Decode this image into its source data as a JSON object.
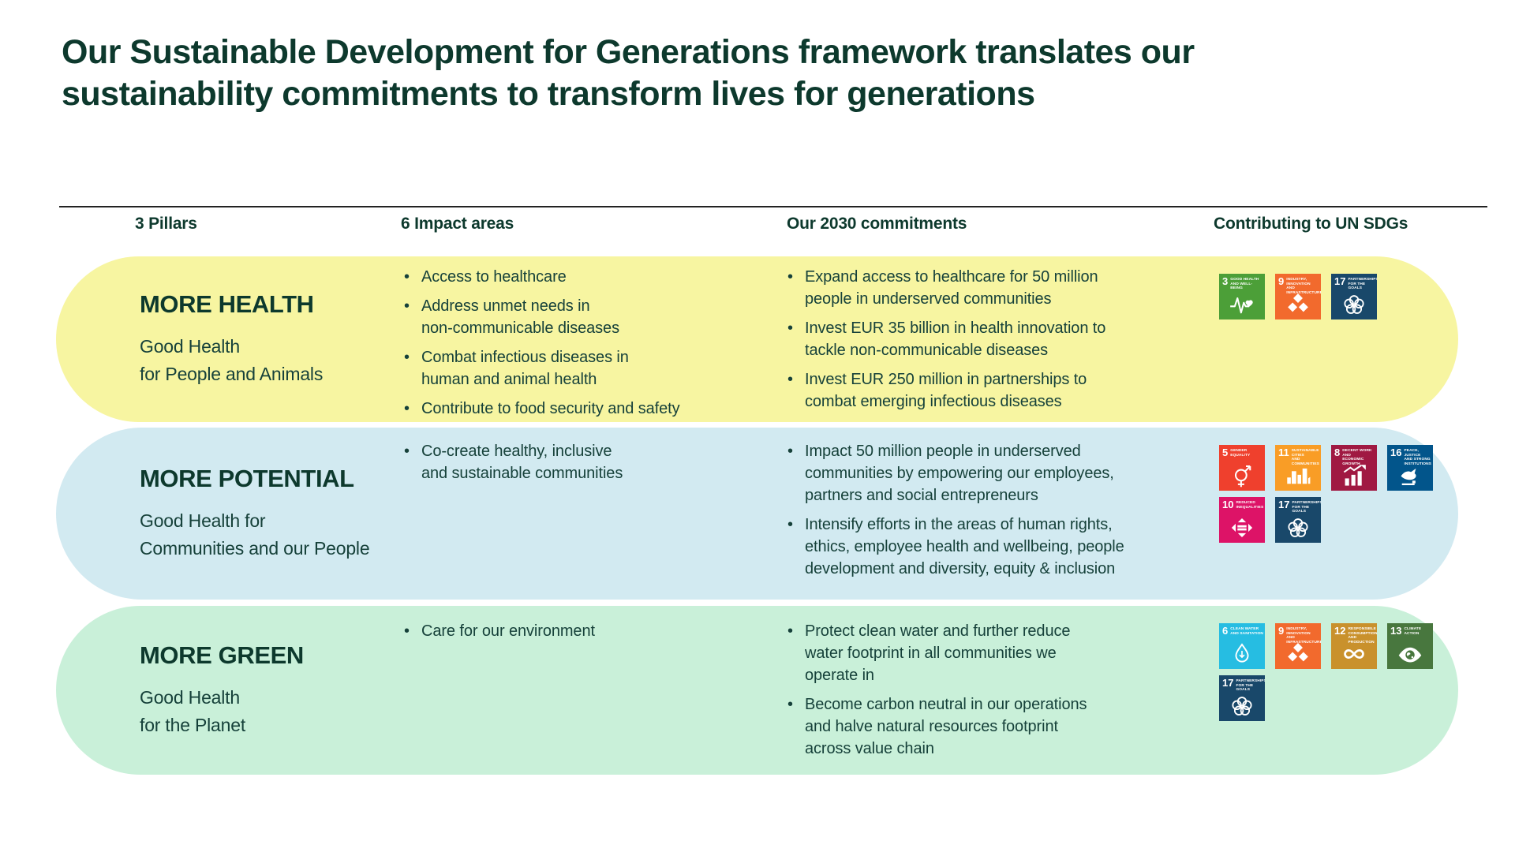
{
  "title": "Our Sustainable Development for Generations framework translates our\nsustainability commitments to transform lives for generations",
  "columns": {
    "pillars": "3 Pillars",
    "impact": "6 Impact areas",
    "commitments": "Our 2030 commitments",
    "sdgs": "Contributing to UN SDGs"
  },
  "colors": {
    "accent_dark_green": "#0d392d",
    "body_text_green": "#16413a",
    "row_more_health_bg": "#f7f5a1",
    "row_more_potential_bg": "#d2eaf1",
    "row_more_green_bg": "#c9f0d9"
  },
  "rows": [
    {
      "name": "MORE HEALTH",
      "subtitle": "Good Health\nfor People and Animals",
      "impact_areas": [
        "Access to healthcare",
        "Address unmet needs in\nnon-communicable diseases",
        "Combat infectious diseases in\nhuman and animal health",
        "Contribute to food security and safety"
      ],
      "commitments": [
        "Expand access to healthcare for 50 million\npeople in underserved communities",
        "Invest EUR 35 billion in health innovation to\ntackle non-communicable diseases",
        "Invest EUR 250 million in partnerships to\ncombat emerging infectious diseases"
      ],
      "sdgs": [
        {
          "n": "3",
          "label": "GOOD HEALTH\nAND WELL-BEING",
          "color": "#4C9F38",
          "icon": "heartbeat-icon"
        },
        {
          "n": "9",
          "label": "INDUSTRY, INNOVATION\nAND INFRASTRUCTURE",
          "color": "#F26A2D",
          "icon": "cubes-icon"
        },
        {
          "n": "17",
          "label": "PARTNERSHIPS\nFOR THE GOALS",
          "color": "#19486A",
          "icon": "circles-icon"
        }
      ]
    },
    {
      "name": "MORE POTENTIAL",
      "subtitle": "Good Health for\nCommunities and our People",
      "impact_areas": [
        "Co-create healthy, inclusive\nand sustainable communities"
      ],
      "commitments": [
        "Impact 50 million people in underserved\ncommunities by empowering our employees,\npartners and social entrepreneurs",
        "Intensify efforts in the areas of human rights,\nethics,  employee health and wellbeing, people\ndevelopment and diversity, equity & inclusion"
      ],
      "sdgs": [
        {
          "n": "5",
          "label": "GENDER\nEQUALITY",
          "color": "#EF402D",
          "icon": "gender-icon"
        },
        {
          "n": "11",
          "label": "SUSTAINABLE CITIES\nAND COMMUNITIES",
          "color": "#F99D26",
          "icon": "city-icon"
        },
        {
          "n": "8",
          "label": "DECENT WORK AND\nECONOMIC GROWTH",
          "color": "#A01942",
          "icon": "growth-icon"
        },
        {
          "n": "16",
          "label": "PEACE, JUSTICE\nAND STRONG\nINSTITUTIONS",
          "color": "#02558B",
          "icon": "dove-icon"
        },
        {
          "n": "10",
          "label": "REDUCED\nINEQUALITIES",
          "color": "#DD1367",
          "icon": "equality-icon"
        },
        {
          "n": "17",
          "label": "PARTNERSHIPS\nFOR THE GOALS",
          "color": "#19486A",
          "icon": "circles-icon"
        }
      ]
    },
    {
      "name": "MORE GREEN",
      "subtitle": "Good Health\nfor the Planet",
      "impact_areas": [
        "Care for our environment"
      ],
      "commitments": [
        "Protect clean water and further reduce\nwater footprint in all communities we\noperate in",
        "Become carbon neutral in our operations\nand halve natural resources footprint\nacross value chain"
      ],
      "sdgs": [
        {
          "n": "6",
          "label": "CLEAN WATER\nAND SANITATION",
          "color": "#26BDE2",
          "icon": "waterdrop-icon"
        },
        {
          "n": "9",
          "label": "INDUSTRY, INNOVATION\nAND INFRASTRUCTURE",
          "color": "#F26A2D",
          "icon": "cubes-icon"
        },
        {
          "n": "12",
          "label": "RESPONSIBLE\nCONSUMPTION\nAND PRODUCTION",
          "color": "#C9912C",
          "icon": "infinity-icon"
        },
        {
          "n": "13",
          "label": "CLIMATE\nACTION",
          "color": "#48773E",
          "icon": "eye-icon"
        },
        {
          "n": "17",
          "label": "PARTNERSHIPS\nFOR THE GOALS",
          "color": "#19486A",
          "icon": "circles-icon"
        }
      ]
    }
  ]
}
